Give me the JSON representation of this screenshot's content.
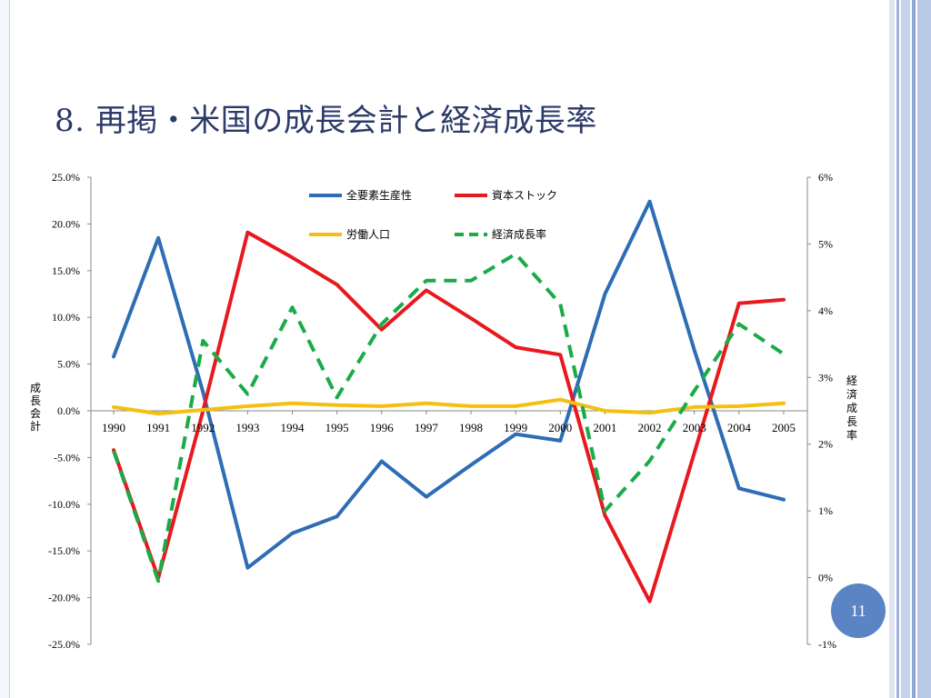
{
  "slide": {
    "title": "8. 再掲・米国の成長会計と経済成長率",
    "page_number": "11"
  },
  "chart_data": {
    "type": "line",
    "x": [
      "1990",
      "1991",
      "1992",
      "1993",
      "1994",
      "1995",
      "1996",
      "1997",
      "1998",
      "1999",
      "2000",
      "2001",
      "2002",
      "2003",
      "2004",
      "2005"
    ],
    "series": [
      {
        "name": "全要素生産性",
        "axis": "left",
        "color": "#2e6db5",
        "style": "solid",
        "values": [
          5.8,
          18.5,
          2.0,
          -16.8,
          -13.1,
          -11.3,
          -5.4,
          -9.2,
          -5.8,
          -2.5,
          -3.2,
          12.5,
          22.4,
          6.5,
          -8.3,
          -9.5
        ]
      },
      {
        "name": "資本ストック",
        "axis": "left",
        "color": "#e8191e",
        "style": "solid",
        "values": [
          -4.2,
          -17.9,
          0.0,
          19.1,
          16.4,
          13.5,
          8.7,
          12.9,
          9.9,
          6.8,
          6.0,
          -11.2,
          -20.4,
          -4.5,
          11.5,
          11.9
        ]
      },
      {
        "name": "労働人口",
        "axis": "left",
        "color": "#f5bf12",
        "style": "solid",
        "values": [
          0.4,
          -0.3,
          0.1,
          0.5,
          0.8,
          0.6,
          0.5,
          0.8,
          0.5,
          0.5,
          1.2,
          0.0,
          -0.2,
          0.4,
          0.5,
          0.8
        ]
      },
      {
        "name": "経済成長率",
        "axis": "right",
        "color": "#1aab48",
        "style": "dashed",
        "values": [
          1.9,
          -0.05,
          3.55,
          2.75,
          4.05,
          2.7,
          3.8,
          4.45,
          4.45,
          4.85,
          4.1,
          1.0,
          1.75,
          2.8,
          3.8,
          3.35
        ]
      }
    ],
    "y_left": {
      "range": [
        -25,
        25
      ],
      "ticks": [
        "25.0%",
        "20.0%",
        "15.0%",
        "10.0%",
        "5.0%",
        "0.0%",
        "-5.0%",
        "-10.0%",
        "-15.0%",
        "-20.0%",
        "-25.0%"
      ],
      "label": "成長会計"
    },
    "y_right": {
      "range": [
        -1,
        6
      ],
      "ticks": [
        "6%",
        "5%",
        "4%",
        "3%",
        "2%",
        "1%",
        "0%",
        "-1%"
      ],
      "label": "経済成長率"
    },
    "legend_position": "top-center",
    "grid": false
  }
}
